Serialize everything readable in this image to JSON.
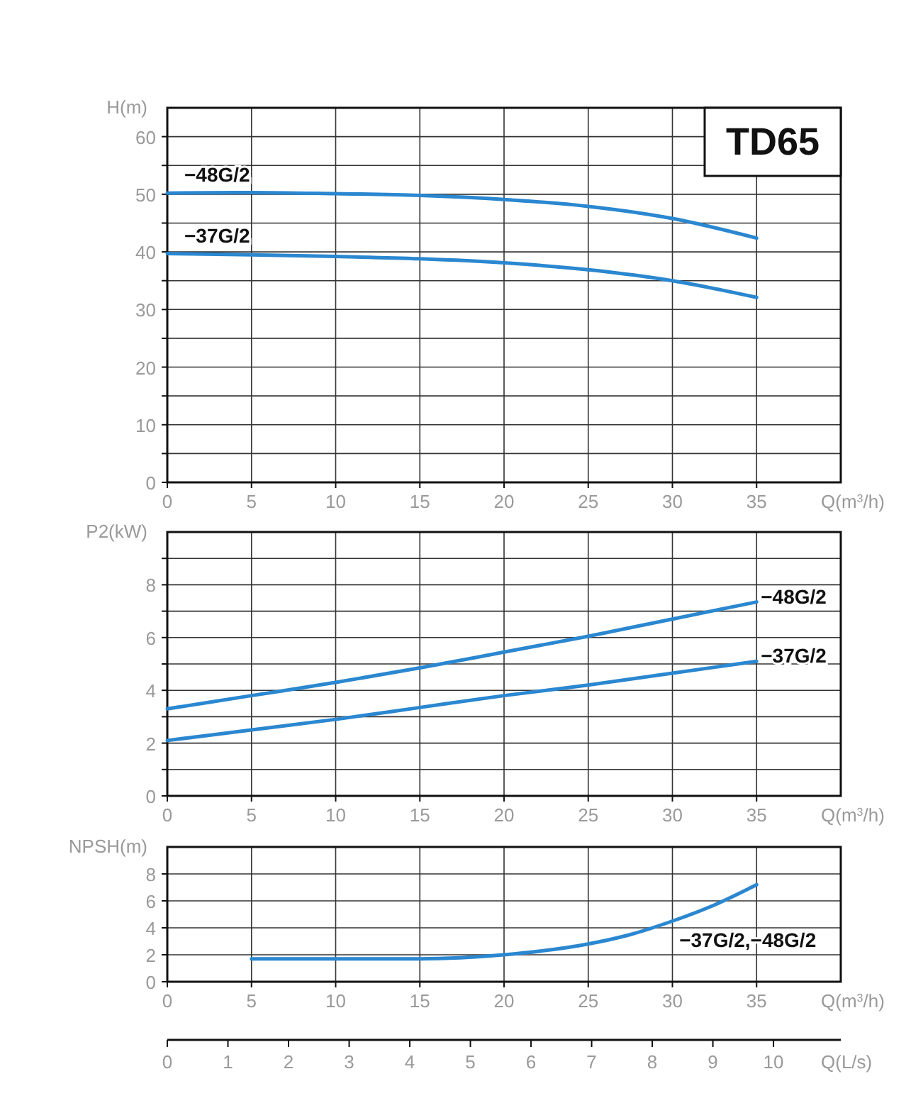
{
  "chart_data": [
    {
      "type": "line",
      "title": "TD65",
      "ylabel": "H(m)",
      "xlabel": "Q(m$^{3}$/h)",
      "x": [
        0,
        5,
        10,
        15,
        20,
        25,
        30,
        35
      ],
      "xlim": [
        0,
        40
      ],
      "xticks": [
        0,
        5,
        10,
        15,
        20,
        25,
        30,
        35
      ],
      "ylim": [
        0,
        65
      ],
      "yticks": [
        0,
        {
          "value": 5,
          "label": null
        },
        10,
        {
          "value": 15,
          "label": null
        },
        20,
        {
          "value": 25,
          "label": null
        },
        30,
        {
          "value": 35,
          "label": null
        },
        40,
        {
          "value": 45,
          "label": null
        },
        50,
        {
          "value": 55,
          "label": null
        },
        60
      ],
      "grid": true,
      "series": [
        {
          "name": "−48G/2",
          "color": "#2a87d0",
          "values": [
            50.2,
            50.3,
            50.1,
            49.8,
            49.1,
            47.9,
            45.8,
            42.4
          ]
        },
        {
          "name": "−37G/2",
          "color": "#2a87d0",
          "values": [
            39.7,
            39.5,
            39.2,
            38.8,
            38.1,
            36.9,
            35.0,
            32.1
          ]
        }
      ]
    },
    {
      "type": "line",
      "ylabel": "P2(kW)",
      "xlabel": "Q(m$^{3}$/h)",
      "x": [
        0,
        5,
        10,
        15,
        20,
        25,
        30,
        35
      ],
      "xlim": [
        0,
        40
      ],
      "xticks": [
        0,
        5,
        10,
        15,
        20,
        25,
        30,
        35
      ],
      "ylim": [
        0,
        10
      ],
      "yticks": [
        0,
        {
          "value": 1,
          "label": null
        },
        2,
        {
          "value": 3,
          "label": null
        },
        4,
        {
          "value": 5,
          "label": null
        },
        6,
        {
          "value": 7,
          "label": null
        },
        8,
        {
          "value": 9,
          "label": null
        }
      ],
      "grid": true,
      "series": [
        {
          "name": "−48G/2",
          "color": "#2a87d0",
          "values": [
            3.3,
            3.8,
            4.3,
            4.85,
            5.45,
            6.05,
            6.7,
            7.35
          ]
        },
        {
          "name": "−37G/2",
          "color": "#2a87d0",
          "values": [
            2.1,
            2.5,
            2.9,
            3.35,
            3.8,
            4.2,
            4.65,
            5.1
          ]
        }
      ]
    },
    {
      "type": "line",
      "ylabel": "NPSH(m)",
      "xlabel": "Q(m$^{3}$/h)",
      "xlim": [
        0,
        40
      ],
      "xticks": [
        0,
        5,
        10,
        15,
        20,
        25,
        30,
        35
      ],
      "ylim": [
        0,
        10
      ],
      "yticks": [
        0,
        2,
        4,
        6,
        8
      ],
      "grid": true,
      "x2label": "Q(L/s)",
      "x2lim": [
        0,
        11.11
      ],
      "x2ticks": [
        0,
        1,
        2,
        3,
        4,
        5,
        6,
        7,
        8,
        9,
        10
      ],
      "series": [
        {
          "name": "−37G/2,−48G/2",
          "color": "#2a87d0",
          "x": [
            5,
            10,
            15,
            20,
            25,
            27.5,
            30,
            32.5,
            35
          ],
          "values": [
            1.7,
            1.7,
            1.7,
            2,
            2.8,
            3.5,
            4.5,
            5.7,
            7.2
          ]
        }
      ]
    }
  ]
}
